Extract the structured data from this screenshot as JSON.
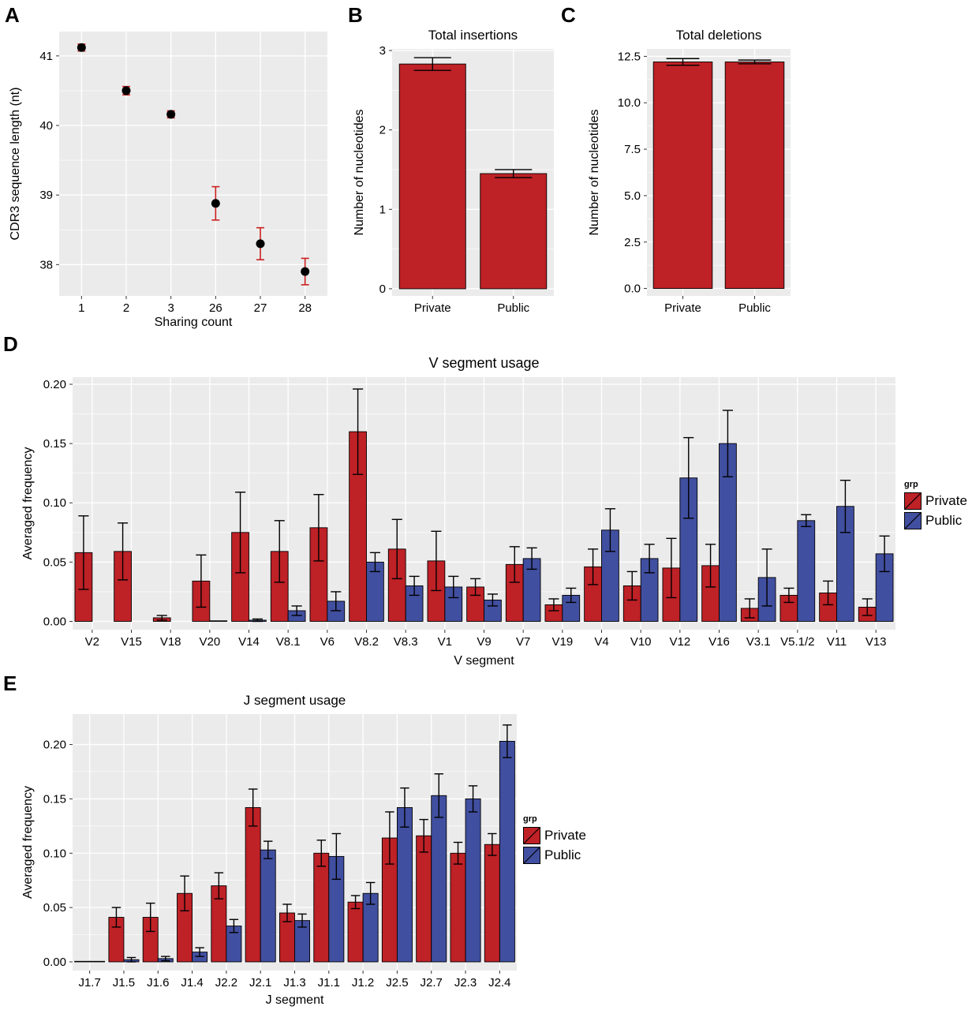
{
  "figure": {
    "background": "#FFFFFF",
    "panel_background": "#EBEBEB",
    "grid_color": "#FFFFFF",
    "bar_red": "#BE2126",
    "bar_blue": "#414FA0",
    "error_red": "#CC2020",
    "text_color": "#000000"
  },
  "panels": {
    "a_label": "A",
    "b_label": "B",
    "c_label": "C",
    "d_label": "D",
    "e_label": "E"
  },
  "legend": {
    "title": "grp",
    "items": [
      {
        "label": "Private",
        "color": "#BE2126"
      },
      {
        "label": "Public",
        "color": "#414FA0"
      }
    ]
  },
  "chart_data": [
    {
      "id": "a",
      "type": "scatter",
      "title": "",
      "xlabel": "Sharing count",
      "ylabel": "CDR3 sequence length (nt)",
      "categories": [
        "1",
        "2",
        "3",
        "26",
        "27",
        "28"
      ],
      "series": [
        {
          "name": "CDR3 length",
          "values": [
            41.12,
            40.5,
            40.16,
            38.88,
            38.3,
            37.9
          ],
          "errors": [
            0.05,
            0.06,
            0.05,
            0.24,
            0.23,
            0.19
          ]
        }
      ],
      "ylim": [
        37.55,
        41.35
      ],
      "yticks": [
        38,
        39,
        40,
        41
      ],
      "ytick_labels": [
        "38",
        "39",
        "40",
        "41"
      ],
      "yminor": [
        38.5,
        39.5,
        40.5
      ],
      "point_color": "#000000",
      "error_color": "#CC2020",
      "grid": true
    },
    {
      "id": "b",
      "type": "bar",
      "title": "Total insertions",
      "xlabel": "",
      "ylabel": "Number of nucleotides",
      "categories": [
        "Private",
        "Public"
      ],
      "series": [
        {
          "name": "nucleotides",
          "color_key": "bar_red",
          "values": [
            2.83,
            1.45
          ],
          "errors": [
            0.08,
            0.05
          ]
        }
      ],
      "ylim": [
        -0.09,
        3.02
      ],
      "yticks": [
        0,
        1,
        2,
        3
      ],
      "ytick_labels": [
        "0",
        "1",
        "2",
        "3"
      ],
      "yminor": [
        0.5,
        1.5,
        2.5
      ],
      "grid": true
    },
    {
      "id": "c",
      "type": "bar",
      "title": "Total deletions",
      "xlabel": "",
      "ylabel": "Number of nucleotides",
      "categories": [
        "Private",
        "Public"
      ],
      "series": [
        {
          "name": "nucleotides",
          "color_key": "bar_red",
          "values": [
            12.2,
            12.2
          ],
          "errors": [
            0.18,
            0.1
          ]
        }
      ],
      "ylim": [
        -0.4,
        12.9
      ],
      "yticks": [
        0,
        2.5,
        5,
        7.5,
        10,
        12.5
      ],
      "ytick_labels": [
        "0.0",
        "2.5",
        "5.0",
        "7.5",
        "10.0",
        "12.5"
      ],
      "yminor": [
        1.25,
        3.75,
        6.25,
        8.75,
        11.25
      ],
      "grid": true
    },
    {
      "id": "d",
      "type": "grouped_bar",
      "title": "V segment usage",
      "xlabel": "V segment",
      "ylabel": "Averaged frequency",
      "legend_position": "right",
      "categories": [
        "V2",
        "V15",
        "V18",
        "V20",
        "V14",
        "V8.1",
        "V6",
        "V8.2",
        "V8.3",
        "V1",
        "V9",
        "V7",
        "V19",
        "V4",
        "V10",
        "V12",
        "V16",
        "V3.1",
        "V5.1/2",
        "V11",
        "V13"
      ],
      "series": [
        {
          "name": "Private",
          "color_key": "bar_red",
          "values": [
            0.058,
            0.059,
            0.003,
            0.034,
            0.075,
            0.059,
            0.079,
            0.16,
            0.061,
            0.051,
            0.029,
            0.048,
            0.014,
            0.046,
            0.03,
            0.045,
            0.047,
            0.011,
            0.022,
            0.024,
            0.012
          ],
          "errors": [
            0.031,
            0.024,
            0.002,
            0.022,
            0.034,
            0.026,
            0.028,
            0.036,
            0.025,
            0.025,
            0.007,
            0.015,
            0.005,
            0.015,
            0.012,
            0.025,
            0.018,
            0.008,
            0.006,
            0.01,
            0.007
          ]
        },
        {
          "name": "Public",
          "color_key": "bar_blue",
          "values": [
            0,
            0,
            0,
            0.0005,
            0.001,
            0.009,
            0.017,
            0.05,
            0.03,
            0.029,
            0.018,
            0.053,
            0.022,
            0.077,
            0.053,
            0.121,
            0.15,
            0.037,
            0.085,
            0.097,
            0.057
          ],
          "errors": [
            0,
            0,
            0,
            0,
            0.001,
            0.004,
            0.008,
            0.008,
            0.008,
            0.009,
            0.005,
            0.009,
            0.006,
            0.018,
            0.012,
            0.034,
            0.028,
            0.024,
            0.005,
            0.022,
            0.015
          ]
        }
      ],
      "ylim": [
        -0.007,
        0.206
      ],
      "yticks": [
        0,
        0.05,
        0.1,
        0.15,
        0.2
      ],
      "ytick_labels": [
        "0.00",
        "0.05",
        "0.10",
        "0.15",
        "0.20"
      ],
      "yminor": [
        0.025,
        0.075,
        0.125,
        0.175
      ],
      "grid": true
    },
    {
      "id": "e",
      "type": "grouped_bar",
      "title": "J segment usage",
      "xlabel": "J segment",
      "ylabel": "Averaged frequency",
      "legend_position": "right",
      "categories": [
        "J1.7",
        "J1.5",
        "J1.6",
        "J1.4",
        "J2.2",
        "J2.1",
        "J1.3",
        "J1.1",
        "J1.2",
        "J2.5",
        "J2.7",
        "J2.3",
        "J2.4"
      ],
      "series": [
        {
          "name": "Private",
          "color_key": "bar_red",
          "values": [
            0.0005,
            0.041,
            0.041,
            0.063,
            0.07,
            0.142,
            0.045,
            0.1,
            0.055,
            0.114,
            0.116,
            0.1,
            0.108
          ],
          "errors": [
            0,
            0.009,
            0.013,
            0.016,
            0.012,
            0.017,
            0.008,
            0.012,
            0.006,
            0.024,
            0.015,
            0.01,
            0.01
          ]
        },
        {
          "name": "Public",
          "color_key": "bar_blue",
          "values": [
            0.0005,
            0.002,
            0.003,
            0.009,
            0.033,
            0.103,
            0.038,
            0.097,
            0.063,
            0.142,
            0.153,
            0.15,
            0.203
          ],
          "errors": [
            0,
            0.002,
            0.002,
            0.004,
            0.006,
            0.008,
            0.006,
            0.021,
            0.01,
            0.018,
            0.02,
            0.012,
            0.015
          ]
        }
      ],
      "ylim": [
        -0.008,
        0.228
      ],
      "yticks": [
        0,
        0.05,
        0.1,
        0.15,
        0.2
      ],
      "ytick_labels": [
        "0.00",
        "0.05",
        "0.10",
        "0.15",
        "0.20"
      ],
      "yminor": [
        0.025,
        0.075,
        0.125,
        0.175
      ],
      "grid": true
    }
  ]
}
